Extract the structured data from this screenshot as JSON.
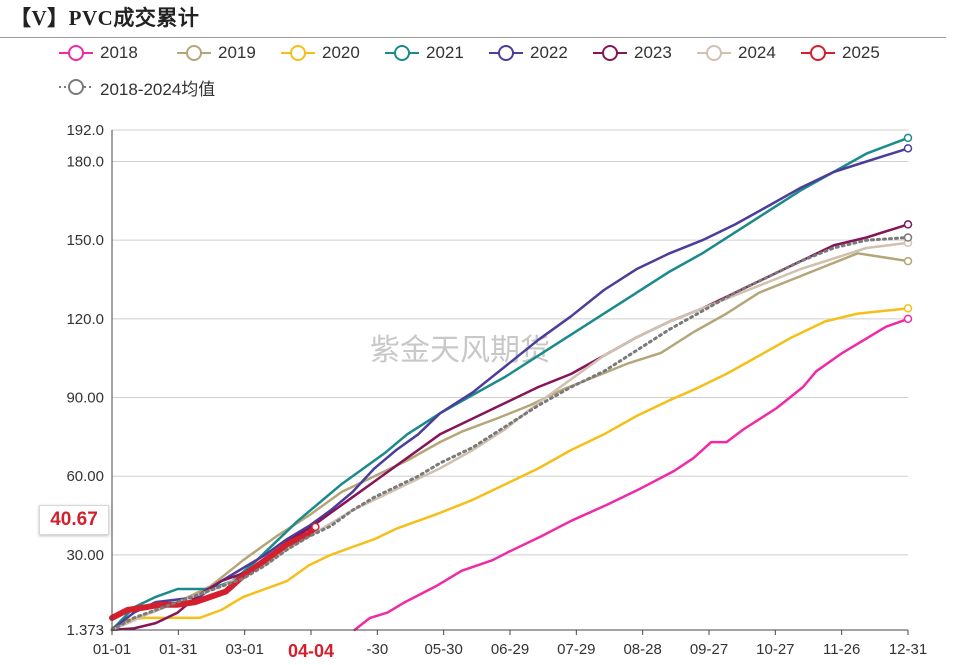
{
  "title": "【V】PVC成交累计",
  "watermark": "紫金天风期货",
  "badge": {
    "value": "40.67",
    "color": "#d4202e"
  },
  "chart_data": {
    "type": "line",
    "title": "【V】PVC成交累计",
    "xlabel": "",
    "ylabel": "",
    "x_ticks": [
      "01-01",
      "01-31",
      "03-01",
      "04-04",
      "-30",
      "05-30",
      "06-29",
      "07-29",
      "08-28",
      "09-27",
      "10-27",
      "11-26",
      "12-31"
    ],
    "highlight_x_tick": "04-04",
    "y_ticks": [
      "1.373",
      "30.00",
      "60.00",
      "90.00",
      "120.0",
      "150.0",
      "180.0",
      "192.0"
    ],
    "y_tick_values": [
      1.373,
      30,
      60,
      90,
      120,
      150,
      180,
      192
    ],
    "ylim": [
      1.373,
      192.0
    ],
    "x_range_days": [
      0,
      364
    ],
    "grid": "horizontal",
    "legend_position": "top",
    "series": [
      {
        "name": "2018",
        "color": "#f02aa6",
        "style": "solid",
        "points": [
          [
            111,
            1.4
          ],
          [
            118,
            6
          ],
          [
            126,
            8
          ],
          [
            134,
            12
          ],
          [
            148,
            18
          ],
          [
            160,
            24
          ],
          [
            174,
            28
          ],
          [
            181,
            31
          ],
          [
            196,
            37
          ],
          [
            210,
            43
          ],
          [
            226,
            49
          ],
          [
            241,
            55
          ],
          [
            257,
            62
          ],
          [
            266,
            67
          ],
          [
            274,
            73
          ],
          [
            281,
            73
          ],
          [
            289,
            78
          ],
          [
            304,
            86
          ],
          [
            316,
            94
          ],
          [
            322,
            100
          ],
          [
            334,
            107
          ],
          [
            346,
            113
          ],
          [
            354,
            117
          ],
          [
            364,
            120
          ]
        ]
      },
      {
        "name": "2019",
        "color": "#b5a679",
        "style": "solid",
        "points": [
          [
            0,
            1.4
          ],
          [
            5,
            4
          ],
          [
            18,
            8
          ],
          [
            30,
            12
          ],
          [
            45,
            18
          ],
          [
            60,
            28
          ],
          [
            75,
            37
          ],
          [
            90,
            45
          ],
          [
            105,
            54
          ],
          [
            120,
            60
          ],
          [
            135,
            66
          ],
          [
            150,
            73
          ],
          [
            160,
            77
          ],
          [
            176,
            82
          ],
          [
            191,
            87
          ],
          [
            206,
            93
          ],
          [
            221,
            98
          ],
          [
            236,
            103
          ],
          [
            251,
            107
          ],
          [
            266,
            115
          ],
          [
            281,
            122
          ],
          [
            296,
            130
          ],
          [
            311,
            135
          ],
          [
            326,
            140
          ],
          [
            341,
            145
          ],
          [
            364,
            142
          ]
        ]
      },
      {
        "name": "2020",
        "color": "#f5bf1a",
        "style": "solid",
        "points": [
          [
            0,
            2
          ],
          [
            5,
            5
          ],
          [
            15,
            6
          ],
          [
            30,
            6
          ],
          [
            40,
            6
          ],
          [
            50,
            9
          ],
          [
            60,
            14
          ],
          [
            70,
            17
          ],
          [
            80,
            20
          ],
          [
            90,
            26
          ],
          [
            100,
            30
          ],
          [
            110,
            33
          ],
          [
            120,
            36
          ],
          [
            130,
            40
          ],
          [
            140,
            43
          ],
          [
            150,
            46
          ],
          [
            165,
            51
          ],
          [
            180,
            57
          ],
          [
            195,
            63
          ],
          [
            210,
            70
          ],
          [
            225,
            76
          ],
          [
            240,
            83
          ],
          [
            255,
            89
          ],
          [
            266,
            93
          ],
          [
            281,
            99
          ],
          [
            296,
            106
          ],
          [
            311,
            113
          ],
          [
            326,
            119
          ],
          [
            341,
            122
          ],
          [
            364,
            124
          ]
        ]
      },
      {
        "name": "2021",
        "color": "#1b8a8a",
        "style": "solid",
        "points": [
          [
            0,
            1.4
          ],
          [
            10,
            10
          ],
          [
            20,
            14
          ],
          [
            30,
            17
          ],
          [
            45,
            17
          ],
          [
            55,
            20
          ],
          [
            65,
            27
          ],
          [
            75,
            35
          ],
          [
            85,
            43
          ],
          [
            95,
            50
          ],
          [
            105,
            57
          ],
          [
            115,
            63
          ],
          [
            125,
            69
          ],
          [
            135,
            76
          ],
          [
            150,
            84
          ],
          [
            165,
            91
          ],
          [
            180,
            98
          ],
          [
            195,
            106
          ],
          [
            210,
            114
          ],
          [
            225,
            122
          ],
          [
            240,
            130
          ],
          [
            255,
            138
          ],
          [
            270,
            145
          ],
          [
            285,
            153
          ],
          [
            300,
            161
          ],
          [
            315,
            169
          ],
          [
            330,
            176
          ],
          [
            345,
            183
          ],
          [
            364,
            189
          ]
        ]
      },
      {
        "name": "2022",
        "color": "#4b3d99",
        "style": "solid",
        "points": [
          [
            0,
            1.4
          ],
          [
            10,
            8
          ],
          [
            20,
            12
          ],
          [
            30,
            13
          ],
          [
            40,
            14
          ],
          [
            50,
            20
          ],
          [
            60,
            25
          ],
          [
            70,
            30
          ],
          [
            80,
            36
          ],
          [
            90,
            41
          ],
          [
            100,
            47
          ],
          [
            110,
            54
          ],
          [
            120,
            63
          ],
          [
            130,
            70
          ],
          [
            140,
            76
          ],
          [
            150,
            84
          ],
          [
            165,
            92
          ],
          [
            180,
            102
          ],
          [
            195,
            112
          ],
          [
            210,
            121
          ],
          [
            225,
            131
          ],
          [
            240,
            139
          ],
          [
            255,
            145
          ],
          [
            270,
            150
          ],
          [
            285,
            156
          ],
          [
            300,
            163
          ],
          [
            315,
            170
          ],
          [
            330,
            176
          ],
          [
            345,
            180
          ],
          [
            364,
            185
          ]
        ]
      },
      {
        "name": "2023",
        "color": "#861558",
        "style": "solid",
        "points": [
          [
            0,
            1.4
          ],
          [
            10,
            2
          ],
          [
            20,
            4
          ],
          [
            30,
            8
          ],
          [
            40,
            15
          ],
          [
            50,
            20
          ],
          [
            60,
            23
          ],
          [
            70,
            28
          ],
          [
            80,
            35
          ],
          [
            90,
            40
          ],
          [
            100,
            46
          ],
          [
            110,
            52
          ],
          [
            120,
            58
          ],
          [
            130,
            64
          ],
          [
            140,
            70
          ],
          [
            150,
            76
          ],
          [
            165,
            82
          ],
          [
            180,
            88
          ],
          [
            195,
            94
          ],
          [
            210,
            99
          ],
          [
            225,
            106
          ],
          [
            240,
            113
          ],
          [
            255,
            119
          ],
          [
            270,
            124
          ],
          [
            285,
            130
          ],
          [
            300,
            136
          ],
          [
            315,
            142
          ],
          [
            330,
            148
          ],
          [
            345,
            151
          ],
          [
            364,
            156
          ]
        ]
      },
      {
        "name": "2024",
        "color": "#d0c1b1",
        "style": "solid",
        "points": [
          [
            0,
            1.4
          ],
          [
            10,
            5
          ],
          [
            20,
            9
          ],
          [
            30,
            12
          ],
          [
            40,
            15
          ],
          [
            50,
            18
          ],
          [
            60,
            22
          ],
          [
            70,
            26
          ],
          [
            80,
            32
          ],
          [
            90,
            37
          ],
          [
            100,
            42
          ],
          [
            110,
            47
          ],
          [
            120,
            51
          ],
          [
            130,
            55
          ],
          [
            140,
            59
          ],
          [
            150,
            63
          ],
          [
            165,
            70
          ],
          [
            180,
            78
          ],
          [
            195,
            88
          ],
          [
            210,
            97
          ],
          [
            225,
            106
          ],
          [
            240,
            113
          ],
          [
            255,
            119
          ],
          [
            270,
            124
          ],
          [
            285,
            129
          ],
          [
            300,
            134
          ],
          [
            315,
            139
          ],
          [
            330,
            143
          ],
          [
            345,
            147
          ],
          [
            364,
            149
          ]
        ]
      },
      {
        "name": "2025",
        "color": "#d4202e",
        "style": "solid",
        "points": [
          [
            0,
            6
          ],
          [
            7,
            9
          ],
          [
            15,
            10
          ],
          [
            22,
            11
          ],
          [
            30,
            11
          ],
          [
            38,
            12
          ],
          [
            45,
            14
          ],
          [
            52,
            16
          ],
          [
            60,
            22
          ],
          [
            70,
            28
          ],
          [
            80,
            34
          ],
          [
            90,
            38
          ],
          [
            93,
            40.67
          ]
        ]
      },
      {
        "name": "2018-2024均值",
        "color": "#7a7a7a",
        "style": "dotted",
        "points": [
          [
            0,
            1.4
          ],
          [
            10,
            6
          ],
          [
            20,
            9
          ],
          [
            30,
            12
          ],
          [
            40,
            15
          ],
          [
            50,
            18
          ],
          [
            60,
            21
          ],
          [
            70,
            26
          ],
          [
            80,
            32
          ],
          [
            90,
            37
          ],
          [
            100,
            41
          ],
          [
            110,
            47
          ],
          [
            120,
            52
          ],
          [
            130,
            56
          ],
          [
            140,
            60
          ],
          [
            150,
            65
          ],
          [
            165,
            71
          ],
          [
            180,
            79
          ],
          [
            195,
            87
          ],
          [
            210,
            94
          ],
          [
            225,
            100
          ],
          [
            240,
            108
          ],
          [
            255,
            116
          ],
          [
            270,
            123
          ],
          [
            285,
            130
          ],
          [
            300,
            136
          ],
          [
            315,
            142
          ],
          [
            330,
            147
          ],
          [
            345,
            150
          ],
          [
            364,
            151
          ]
        ]
      }
    ]
  }
}
